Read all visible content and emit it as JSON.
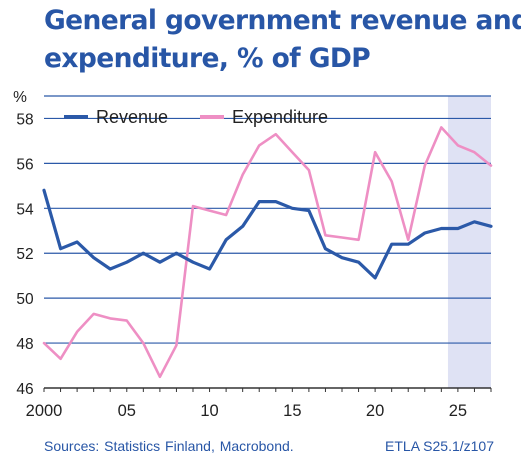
{
  "title_line1": "General government revenue and",
  "title_line2": "expenditure, % of GDP",
  "sources": "Sources:  Statistics Finland, Macrobond.",
  "code": "ETLA S25.1/z107",
  "colors": {
    "title": "#2856a6",
    "revenue": "#2b59a8",
    "expenditure": "#ee8fc4",
    "forecast_band": "#dfe2f4",
    "grid": "#2b59a8"
  },
  "chart_data": {
    "type": "line",
    "title": "General government revenue and expenditure, % of GDP",
    "ylabel": "%",
    "ylim": [
      46,
      59
    ],
    "yticks": [
      46,
      48,
      50,
      52,
      54,
      56,
      58
    ],
    "xlim": [
      2000,
      2027
    ],
    "xticks": [
      2000,
      2005,
      2010,
      2015,
      2020,
      2025
    ],
    "xtick_labels": [
      "2000",
      "05",
      "10",
      "15",
      "20",
      "25"
    ],
    "forecast_start": 2024.4,
    "legend_position": "top-left",
    "grid": true,
    "x": [
      2000,
      2001,
      2002,
      2003,
      2004,
      2005,
      2006,
      2007,
      2008,
      2009,
      2010,
      2011,
      2012,
      2013,
      2014,
      2015,
      2016,
      2017,
      2018,
      2019,
      2020,
      2021,
      2022,
      2023,
      2024,
      2025,
      2026,
      2027
    ],
    "series": [
      {
        "name": "Revenue",
        "values": [
          54.8,
          52.2,
          52.5,
          51.8,
          51.3,
          51.6,
          52.0,
          51.6,
          52.0,
          51.6,
          51.3,
          52.6,
          53.2,
          54.3,
          54.3,
          54.0,
          53.9,
          52.2,
          51.8,
          51.6,
          50.9,
          52.4,
          52.4,
          52.9,
          53.1,
          53.1,
          53.4,
          53.2
        ]
      },
      {
        "name": "Expenditure",
        "values": [
          48.0,
          47.3,
          48.5,
          49.3,
          49.1,
          49.0,
          48.0,
          46.5,
          47.9,
          54.1,
          53.9,
          53.7,
          55.5,
          56.8,
          57.3,
          56.5,
          55.7,
          52.8,
          52.7,
          52.6,
          56.5,
          55.2,
          52.6,
          55.9,
          57.6,
          56.8,
          56.5,
          55.9
        ]
      }
    ]
  }
}
